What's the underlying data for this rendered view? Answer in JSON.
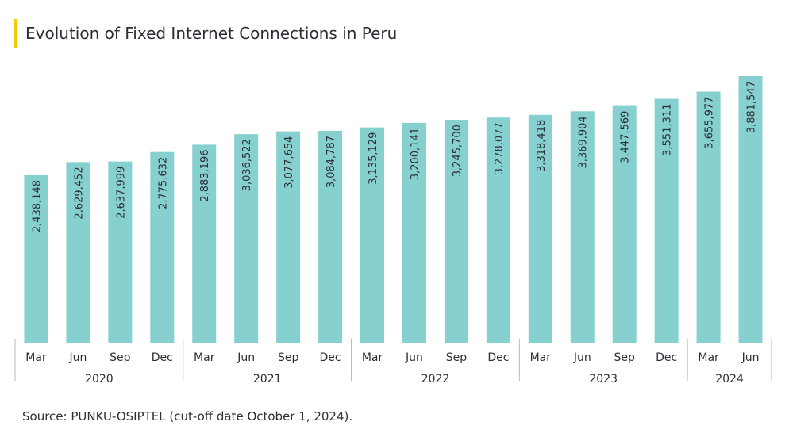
{
  "chart_data": {
    "type": "bar",
    "title": "Evolution of Fixed Internet Connections in Peru",
    "categories": [
      "Mar",
      "Jun",
      "Sep",
      "Dec",
      "Mar",
      "Jun",
      "Sep",
      "Dec",
      "Mar",
      "Jun",
      "Sep",
      "Dec",
      "Mar",
      "Jun",
      "Sep",
      "Dec",
      "Mar",
      "Jun"
    ],
    "groups": [
      {
        "label": "2020",
        "count": 4
      },
      {
        "label": "2021",
        "count": 4
      },
      {
        "label": "2022",
        "count": 4
      },
      {
        "label": "2023",
        "count": 4
      },
      {
        "label": "2024",
        "count": 2
      }
    ],
    "values": [
      2438148,
      2629452,
      2637999,
      2775632,
      2883196,
      3036522,
      3077654,
      3084787,
      3135129,
      3200141,
      3245700,
      3278077,
      3318418,
      3369904,
      3447569,
      3551311,
      3655977,
      3881547
    ],
    "value_labels": [
      "2,438,148",
      "2,629,452",
      "2,637,999",
      "2,775,632",
      "2,883,196",
      "3,036,522",
      "3,077,654",
      "3,084,787",
      "3,135,129",
      "3,200,141",
      "3,245,700",
      "3,278,077",
      "3,318,418",
      "3,369,904",
      "3,447,569",
      "3,551,311",
      "3,655,977",
      "3,881,547"
    ],
    "xlabel": "",
    "ylabel": "",
    "grid": false,
    "bar_color": "#86d1d0",
    "text_color": "#2e2e38",
    "separator_color": "#b8b8b8",
    "accent_color": "#f5c800"
  },
  "source": "Source: PUNKU-OSIPTEL (cut-off date October 1, 2024)."
}
